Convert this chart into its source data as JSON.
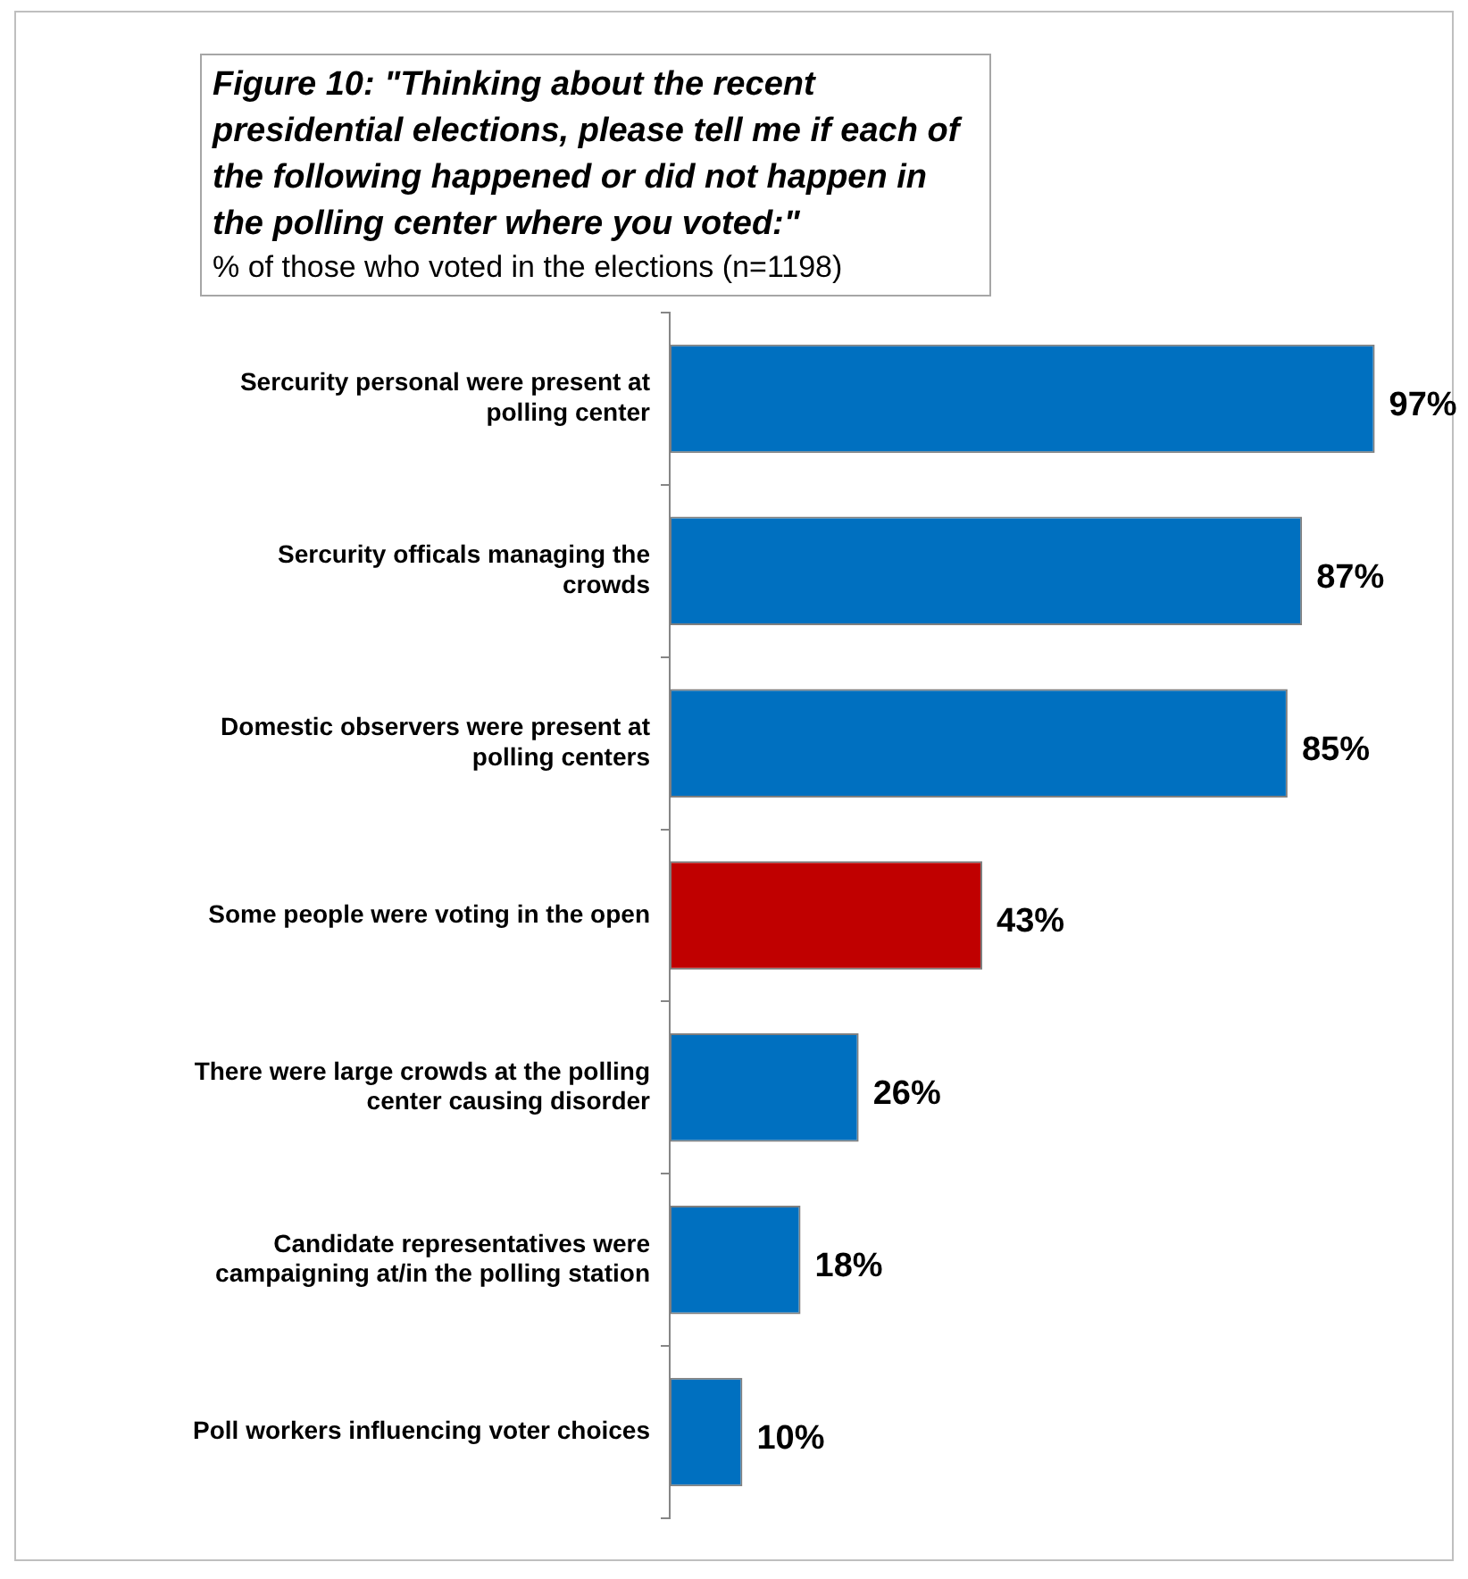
{
  "chart_data": {
    "type": "bar",
    "orientation": "horizontal",
    "title": "Figure 10: \"Thinking about the recent presidential elections, please tell me if each of the following happened or did not happen in the polling center where you voted:\"",
    "subtitle": "% of those who voted in the elections (n=1198)",
    "categories": [
      "Sercurity personal were present at polling center",
      "Sercurity officals managing the crowds",
      "Domestic observers were present at polling centers",
      "Some people were voting in the open",
      "There were large crowds at the polling center causing disorder",
      "Candidate representatives were campaigning at/in the polling station",
      "Poll workers influencing voter choices"
    ],
    "values": [
      97,
      87,
      85,
      43,
      26,
      18,
      10
    ],
    "colors": [
      "#0070c0",
      "#0070c0",
      "#0070c0",
      "#c00000",
      "#0070c0",
      "#0070c0",
      "#0070c0"
    ],
    "value_labels": [
      "97%",
      "87%",
      "85%",
      "43%",
      "26%",
      "18%",
      "10%"
    ],
    "tick_labels": "y",
    "grid": false,
    "legend": false
  }
}
